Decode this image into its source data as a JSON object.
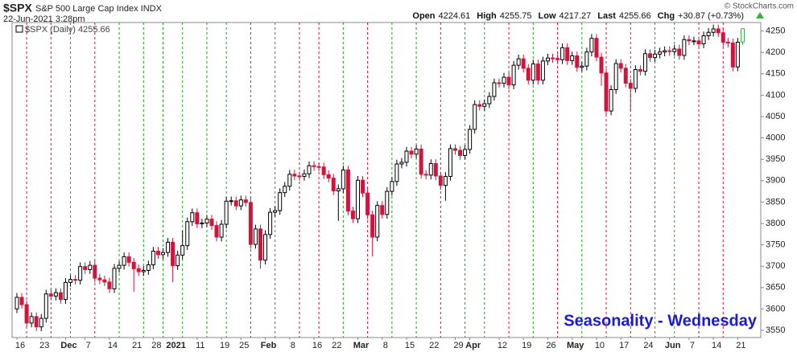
{
  "chart_data": {
    "type": "candlestick",
    "title": "$SPX",
    "subtitle": "S&P 500 Large Cap Index INDX",
    "date": "22-Jun-2021 3:28pm",
    "copyright": "© StockCharts.com",
    "quote": [
      {
        "label": "Open",
        "value": 4224.61
      },
      {
        "label": "High",
        "value": 4255.75
      },
      {
        "label": "Low",
        "value": 4217.27
      },
      {
        "label": "Last",
        "value": 4255.66
      },
      {
        "label": "Chg",
        "value": "+30.87 (+0.73%)"
      }
    ],
    "legend": "$SPX (Daily) 4255.66",
    "annotation": "Seasonality - Wednesday",
    "up_color": "#000000",
    "down_color": "#d2143c",
    "last_color": "#3cb043",
    "categories": [
      "16",
      null,
      null,
      null,
      null,
      "23",
      null,
      null,
      null,
      null,
      "Dec",
      null,
      null,
      null,
      "7",
      null,
      null,
      null,
      null,
      "14",
      null,
      null,
      null,
      null,
      "21",
      null,
      null,
      null,
      "28",
      null,
      null,
      null,
      "2021",
      null,
      null,
      null,
      null,
      "11",
      null,
      null,
      null,
      null,
      "19",
      null,
      null,
      null,
      "25",
      null,
      null,
      null,
      null,
      "Feb",
      null,
      null,
      null,
      null,
      "8",
      null,
      null,
      null,
      null,
      "16",
      null,
      null,
      null,
      "22",
      null,
      null,
      null,
      null,
      "Mar",
      null,
      null,
      null,
      null,
      "8",
      null,
      null,
      null,
      null,
      "15",
      null,
      null,
      null,
      null,
      "22",
      null,
      null,
      null,
      null,
      "29",
      null,
      null,
      "Apr",
      null,
      null,
      null,
      null,
      null,
      "12",
      null,
      null,
      null,
      null,
      "19",
      null,
      null,
      null,
      null,
      "26",
      null,
      null,
      null,
      null,
      "May",
      null,
      null,
      null,
      null,
      "10",
      null,
      null,
      null,
      null,
      "17",
      null,
      null,
      null,
      null,
      "24",
      null,
      null,
      null,
      null,
      "Jun",
      null,
      null,
      null,
      "7",
      null,
      null,
      null,
      null,
      "14",
      null,
      null,
      null,
      null,
      "21",
      null
    ],
    "open": [
      3600,
      3627,
      3610,
      3567,
      3582,
      3558,
      3578,
      3635,
      3630,
      3638,
      3622,
      3662,
      3669,
      3667,
      3699,
      3692,
      3702,
      3672,
      3668,
      3663,
      3647,
      3695,
      3702,
      3722,
      3709,
      3694,
      3687,
      3690,
      3703,
      3735,
      3727,
      3732,
      3756,
      3701,
      3726,
      3748,
      3804,
      3825,
      3799,
      3801,
      3810,
      3795,
      3768,
      3798,
      3852,
      3853,
      3841,
      3855,
      3849,
      3751,
      3787,
      3714,
      3774,
      3826,
      3830,
      3872,
      3887,
      3915,
      3911,
      3910,
      3916,
      3935,
      3933,
      3932,
      3914,
      3906,
      3876,
      3881,
      3925,
      3829,
      3811,
      3901,
      3871,
      3820,
      3768,
      3842,
      3821,
      3875,
      3898,
      3939,
      3943,
      3969,
      3962,
      3974,
      3915,
      3913,
      3940,
      3911,
      3889,
      3910,
      3975,
      3971,
      3959,
      3973,
      4020,
      4078,
      4074,
      4080,
      4097,
      4129,
      4128,
      4142,
      4124,
      4170,
      4185,
      4163,
      4135,
      4173,
      4135,
      4180,
      4187,
      4186,
      4183,
      4211,
      4181,
      4192,
      4165,
      4168,
      4201,
      4233,
      4189,
      4152,
      4063,
      4113,
      4174,
      4163,
      4128,
      4116,
      4160,
      4156,
      4197,
      4188,
      4196,
      4201,
      4204,
      4202,
      4208,
      4193,
      4230,
      4227,
      4227,
      4220,
      4239,
      4247,
      4255,
      4246,
      4224,
      4222,
      4166,
      4224.61
    ],
    "high": [
      3637,
      3637,
      3620,
      3592,
      3592,
      3588,
      3645,
      3645,
      3648,
      3648,
      3672,
      3679,
      3679,
      3709,
      3709,
      3712,
      3712,
      3682,
      3678,
      3673,
      3705,
      3712,
      3732,
      3732,
      3719,
      3704,
      3700,
      3713,
      3745,
      3745,
      3742,
      3766,
      3766,
      3736,
      3783,
      3814,
      3835,
      3835,
      3811,
      3820,
      3820,
      3805,
      3808,
      3862,
      3863,
      3863,
      3865,
      3865,
      3859,
      3797,
      3797,
      3784,
      3836,
      3840,
      3882,
      3897,
      3925,
      3925,
      3921,
      3926,
      3945,
      3945,
      3943,
      3942,
      3924,
      3916,
      3891,
      3935,
      3935,
      3839,
      3911,
      3911,
      3881,
      3830,
      3852,
      3852,
      3885,
      3908,
      3949,
      3953,
      3979,
      3979,
      3984,
      3984,
      3925,
      3950,
      3950,
      3921,
      3920,
      3985,
      3985,
      3981,
      3983,
      4030,
      4088,
      4088,
      4090,
      4107,
      4139,
      4139,
      4152,
      4152,
      4180,
      4195,
      4195,
      4173,
      4183,
      4183,
      4190,
      4197,
      4197,
      4196,
      4221,
      4221,
      4202,
      4202,
      4178,
      4211,
      4243,
      4243,
      4199,
      4162,
      4123,
      4184,
      4184,
      4173,
      4138,
      4170,
      4170,
      4207,
      4207,
      4206,
      4211,
      4214,
      4214,
      4218,
      4218,
      4240,
      4240,
      4237,
      4237,
      4249,
      4257,
      4265,
      4265,
      4256,
      4234,
      4232,
      4234,
      4255.75
    ],
    "low": [
      3590,
      3600,
      3557,
      3557,
      3548,
      3548,
      3568,
      3620,
      3620,
      3612,
      3612,
      3652,
      3657,
      3657,
      3682,
      3682,
      3662,
      3658,
      3653,
      3637,
      3637,
      3685,
      3692,
      3699,
      3640,
      3677,
      3677,
      3680,
      3693,
      3717,
      3717,
      3722,
      3663,
      3691,
      3716,
      3738,
      3794,
      3789,
      3789,
      3791,
      3785,
      3758,
      3758,
      3788,
      3842,
      3831,
      3831,
      3839,
      3741,
      3741,
      3694,
      3704,
      3764,
      3816,
      3820,
      3862,
      3877,
      3901,
      3900,
      3900,
      3906,
      3923,
      3922,
      3904,
      3896,
      3866,
      3806,
      3871,
      3819,
      3801,
      3801,
      3861,
      3810,
      3723,
      3758,
      3811,
      3811,
      3865,
      3888,
      3929,
      3933,
      3952,
      3952,
      3905,
      3903,
      3903,
      3901,
      3879,
      3853,
      3900,
      3961,
      3949,
      3949,
      3963,
      4010,
      4064,
      4064,
      4070,
      4087,
      4118,
      4118,
      4114,
      4114,
      4160,
      4153,
      4125,
      4125,
      4125,
      4125,
      4170,
      4176,
      4173,
      4173,
      4171,
      4171,
      4155,
      4155,
      4158,
      4191,
      4179,
      4122,
      4053,
      4053,
      4103,
      4153,
      4118,
      4062,
      4106,
      4146,
      4146,
      4178,
      4178,
      4186,
      4191,
      4192,
      4192,
      4183,
      4183,
      4217,
      4217,
      4210,
      4210,
      4229,
      4237,
      4236,
      4214,
      4212,
      4156,
      4156,
      4217.27
    ],
    "close": [
      3627,
      3610,
      3567,
      3582,
      3558,
      3578,
      3635,
      3630,
      3638,
      3622,
      3662,
      3669,
      3667,
      3699,
      3692,
      3702,
      3672,
      3668,
      3663,
      3647,
      3695,
      3702,
      3722,
      3709,
      3694,
      3687,
      3690,
      3703,
      3735,
      3727,
      3732,
      3756,
      3701,
      3726,
      3748,
      3804,
      3825,
      3799,
      3801,
      3810,
      3795,
      3768,
      3798,
      3852,
      3853,
      3841,
      3855,
      3849,
      3751,
      3787,
      3714,
      3774,
      3826,
      3830,
      3872,
      3887,
      3915,
      3911,
      3910,
      3916,
      3935,
      3933,
      3932,
      3914,
      3906,
      3876,
      3881,
      3925,
      3829,
      3811,
      3901,
      3871,
      3820,
      3768,
      3842,
      3821,
      3875,
      3898,
      3939,
      3943,
      3969,
      3962,
      3974,
      3915,
      3913,
      3940,
      3911,
      3889,
      3910,
      3975,
      3971,
      3959,
      3973,
      4020,
      4078,
      4074,
      4080,
      4097,
      4129,
      4128,
      4142,
      4124,
      4170,
      4185,
      4163,
      4135,
      4173,
      4135,
      4180,
      4187,
      4186,
      4183,
      4211,
      4181,
      4192,
      4165,
      4168,
      4201,
      4233,
      4189,
      4152,
      4063,
      4113,
      4174,
      4163,
      4128,
      4116,
      4160,
      4156,
      4197,
      4188,
      4196,
      4201,
      4204,
      4202,
      4208,
      4193,
      4230,
      4227,
      4227,
      4220,
      4239,
      4247,
      4255,
      4246,
      4224,
      4222,
      4166,
      4224,
      4255.66
    ],
    "ylim": [
      3533,
      4270
    ],
    "yticks": [
      3550,
      3600,
      3650,
      3700,
      3750,
      3800,
      3850,
      3900,
      3950,
      4000,
      4050,
      4100,
      4150,
      4200,
      4250
    ]
  }
}
